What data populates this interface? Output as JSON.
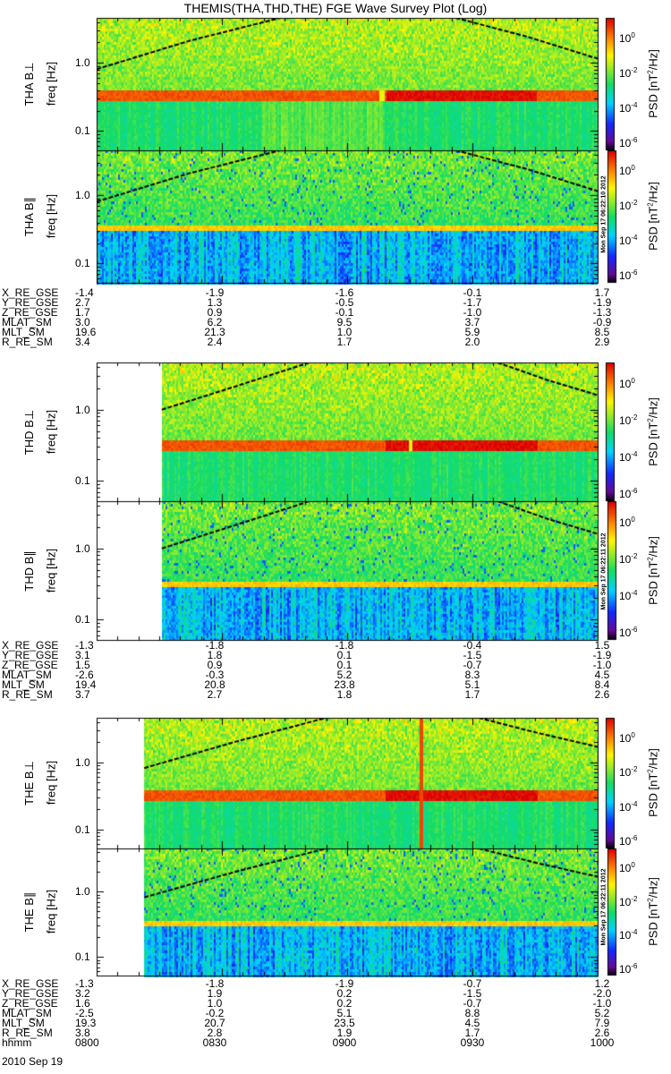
{
  "title": "THEMIS(THA,THD,THE) FGE Wave Survey Plot (Log)",
  "chart_data": {
    "type": "heatmap",
    "title": "THEMIS(THA,THD,THE) FGE Wave Survey Plot (Log)",
    "xlabel": "hhmm",
    "date": "2010 Sep 19",
    "x_ticks": [
      "0800",
      "0830",
      "0900",
      "0930",
      "1000"
    ],
    "x_range_minutes_after_0800": [
      0,
      120
    ],
    "ylabel": "freq [Hz]",
    "y_scale": "log",
    "y_range_hz": [
      0.052,
      4.6
    ],
    "y_ticks": [
      "1.0",
      "0.1"
    ],
    "y_tick_values": [
      1.0,
      0.1
    ],
    "colorbar": {
      "label": "PSD [nT²/Hz]",
      "label_main": "PSD [nT",
      "label_sup": "2",
      "label_tail": "/Hz]",
      "scale": "log",
      "range_log10": [
        -6.4,
        1.2
      ],
      "ticks": [
        {
          "base": "10",
          "exp": "0"
        },
        {
          "base": "10",
          "exp": "-2"
        },
        {
          "base": "10",
          "exp": "-4"
        },
        {
          "base": "10",
          "exp": "-6"
        }
      ]
    },
    "panels": [
      {
        "label": "THA B⊥",
        "comp": "perp",
        "start_min": 0,
        "band_hz": 0.33,
        "gyro_left": [
          [
            0,
            0.81
          ],
          [
            22,
            2.1
          ],
          [
            44,
            4.6
          ]
        ],
        "gyro_right": [
          [
            86,
            4.6
          ],
          [
            103,
            2.45
          ],
          [
            120,
            1.16
          ]
        ]
      },
      {
        "label": "THA B∥",
        "comp": "par",
        "start_min": 0,
        "band_hz": 0.33,
        "timestamp": "Mon Sep 17 06:22:10 2012",
        "gyro_left": [
          [
            0,
            0.81
          ],
          [
            22,
            2.1
          ],
          [
            44,
            4.6
          ]
        ],
        "gyro_right": [
          [
            86,
            4.6
          ],
          [
            103,
            2.45
          ],
          [
            120,
            1.16
          ]
        ]
      },
      {
        "label": "THD B⊥",
        "comp": "perp",
        "start_min": 15.6,
        "band_hz": 0.33,
        "gyro_left": [
          [
            15.6,
            1.0
          ],
          [
            33,
            2.1
          ],
          [
            51,
            4.6
          ]
        ],
        "gyro_right": [
          [
            96,
            4.6
          ],
          [
            108,
            2.6
          ],
          [
            120,
            1.6
          ]
        ]
      },
      {
        "label": "THD B∥",
        "comp": "par",
        "start_min": 15.6,
        "band_hz": 0.33,
        "timestamp": "Mon Sep 17 06:22:11 2012",
        "gyro_left": [
          [
            15.6,
            1.0
          ],
          [
            33,
            2.1
          ],
          [
            51,
            4.6
          ]
        ],
        "gyro_right": [
          [
            96,
            4.6
          ],
          [
            108,
            2.6
          ],
          [
            120,
            1.6
          ]
        ]
      },
      {
        "label": "THE B⊥",
        "comp": "perp",
        "start_min": 11.4,
        "band_hz": 0.33,
        "gyro_left": [
          [
            11.4,
            0.82
          ],
          [
            33,
            2.0
          ],
          [
            55,
            4.6
          ]
        ],
        "gyro_right": [
          [
            91.5,
            4.6
          ],
          [
            106,
            2.7
          ],
          [
            120,
            1.7
          ]
        ]
      },
      {
        "label": "THE B∥",
        "comp": "par",
        "start_min": 11.4,
        "band_hz": 0.33,
        "timestamp": "Mon Sep 17 06:22:11 2012",
        "gyro_left": [
          [
            11.4,
            0.82
          ],
          [
            33,
            2.0
          ],
          [
            55,
            4.6
          ]
        ],
        "gyro_right": [
          [
            91.5,
            4.6
          ],
          [
            106,
            2.7
          ],
          [
            120,
            1.7
          ]
        ]
      }
    ]
  },
  "ephemeris": [
    {
      "rows": [
        {
          "label": "X_RE_GSE",
          "values": [
            "-1.4",
            "-1.9",
            "-1.6",
            "-0.1",
            "1.7"
          ]
        },
        {
          "label": "Y_RE_GSE",
          "values": [
            "2.7",
            "1.3",
            "-0.5",
            "-1.7",
            "-1.9"
          ]
        },
        {
          "label": "Z_RE_GSE",
          "values": [
            "1.7",
            "0.9",
            "-0.1",
            "-1.0",
            "-1.3"
          ]
        },
        {
          "label": "MLAT_SM",
          "values": [
            "3.0",
            "6.2",
            "9.5",
            "3.7",
            "-0.9"
          ]
        },
        {
          "label": "MLT_SM",
          "values": [
            "19.6",
            "21.3",
            "1.0",
            "5.9",
            "8.5"
          ]
        },
        {
          "label": "R_RE_SM",
          "values": [
            "3.4",
            "2.4",
            "1.7",
            "2.0",
            "2.9"
          ]
        }
      ]
    },
    {
      "rows": [
        {
          "label": "X_RE_GSE",
          "values": [
            "-1.3",
            "-1.8",
            "-1.8",
            "-0.4",
            "1.5"
          ]
        },
        {
          "label": "Y_RE_GSE",
          "values": [
            "3.1",
            "1.8",
            "0.1",
            "-1.5",
            "-1.9"
          ]
        },
        {
          "label": "Z_RE_GSE",
          "values": [
            "1.5",
            "0.9",
            "0.1",
            "-0.7",
            "-1.0"
          ]
        },
        {
          "label": "MLAT_SM",
          "values": [
            "-2.6",
            "-0.3",
            "5.2",
            "8.3",
            "4.5"
          ]
        },
        {
          "label": "MLT_SM",
          "values": [
            "19.4",
            "20.8",
            "23.8",
            "5.1",
            "8.4"
          ]
        },
        {
          "label": "R_RE_SM",
          "values": [
            "3.7",
            "2.7",
            "1.8",
            "1.7",
            "2.6"
          ]
        }
      ]
    },
    {
      "rows": [
        {
          "label": "X_RE_GSE",
          "values": [
            "-1.3",
            "-1.8",
            "-1.9",
            "-0.7",
            "1.2"
          ]
        },
        {
          "label": "Y_RE_GSE",
          "values": [
            "3.2",
            "1.9",
            "0.2",
            "-1.5",
            "-2.0"
          ]
        },
        {
          "label": "Z_RE_GSE",
          "values": [
            "1.6",
            "1.0",
            "0.2",
            "-0.7",
            "-1.0"
          ]
        },
        {
          "label": "MLAT_SM",
          "values": [
            "-2.5",
            "-0.2",
            "5.1",
            "8.8",
            "5.2"
          ]
        },
        {
          "label": "MLT_SM",
          "values": [
            "19.3",
            "20.7",
            "23.5",
            "4.5",
            "7.9"
          ]
        },
        {
          "label": "R_RE_SM",
          "values": [
            "3.8",
            "2.8",
            "1.9",
            "1.7",
            "2.6"
          ]
        },
        {
          "label": "hhmm",
          "values": [
            "0800",
            "0830",
            "0900",
            "0930",
            "1000"
          ]
        }
      ]
    }
  ]
}
